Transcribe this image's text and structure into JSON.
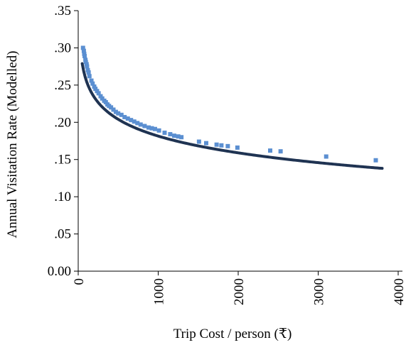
{
  "chart_data": {
    "type": "scatter",
    "xlabel": "Trip Cost / person (₹)",
    "ylabel": "Annual Visitation Rate (Modelled)",
    "xlim": [
      0,
      4000
    ],
    "ylim": [
      0,
      0.35
    ],
    "x_ticks": [
      0,
      1000,
      2000,
      3000,
      4000
    ],
    "x_tick_labels": [
      "0",
      "1000",
      "2000",
      "3000",
      "4000"
    ],
    "y_ticks": [
      0,
      0.05,
      0.1,
      0.15,
      0.2,
      0.25,
      0.3,
      0.35
    ],
    "y_tick_labels": [
      "0.00",
      ".05",
      ".10",
      ".15",
      ".20",
      ".25",
      ".30",
      ".35"
    ],
    "grid": false,
    "legend": "none",
    "series": [
      {
        "kind": "points",
        "color": "#5b8fd1",
        "points": [
          [
            60,
            0.3
          ],
          [
            70,
            0.296
          ],
          [
            75,
            0.292
          ],
          [
            80,
            0.289
          ],
          [
            90,
            0.284
          ],
          [
            95,
            0.281
          ],
          [
            105,
            0.278
          ],
          [
            110,
            0.275
          ],
          [
            120,
            0.27
          ],
          [
            130,
            0.267
          ],
          [
            140,
            0.262
          ],
          [
            165,
            0.256
          ],
          [
            180,
            0.252
          ],
          [
            200,
            0.248
          ],
          [
            215,
            0.245
          ],
          [
            235,
            0.242
          ],
          [
            255,
            0.239
          ],
          [
            280,
            0.235
          ],
          [
            300,
            0.232
          ],
          [
            325,
            0.229
          ],
          [
            345,
            0.227
          ],
          [
            365,
            0.224
          ],
          [
            385,
            0.222
          ],
          [
            410,
            0.22
          ],
          [
            440,
            0.217
          ],
          [
            470,
            0.214
          ],
          [
            500,
            0.212
          ],
          [
            540,
            0.21
          ],
          [
            580,
            0.207
          ],
          [
            620,
            0.205
          ],
          [
            660,
            0.203
          ],
          [
            700,
            0.201
          ],
          [
            740,
            0.199
          ],
          [
            780,
            0.197
          ],
          [
            830,
            0.195
          ],
          [
            880,
            0.193
          ],
          [
            920,
            0.192
          ],
          [
            960,
            0.191
          ],
          [
            1010,
            0.189
          ],
          [
            1080,
            0.186
          ],
          [
            1150,
            0.184
          ],
          [
            1200,
            0.182
          ],
          [
            1250,
            0.181
          ],
          [
            1290,
            0.18
          ],
          [
            1510,
            0.174
          ],
          [
            1600,
            0.172
          ],
          [
            1730,
            0.17
          ],
          [
            1790,
            0.169
          ],
          [
            1870,
            0.168
          ],
          [
            1990,
            0.166
          ],
          [
            2400,
            0.162
          ],
          [
            2530,
            0.161
          ],
          [
            3100,
            0.154
          ],
          [
            3720,
            0.149
          ]
        ]
      },
      {
        "kind": "fit",
        "color": "#1f3352",
        "model": "log",
        "a": 0.406,
        "b": -0.0325,
        "x_range": [
          50,
          3800
        ]
      }
    ]
  }
}
